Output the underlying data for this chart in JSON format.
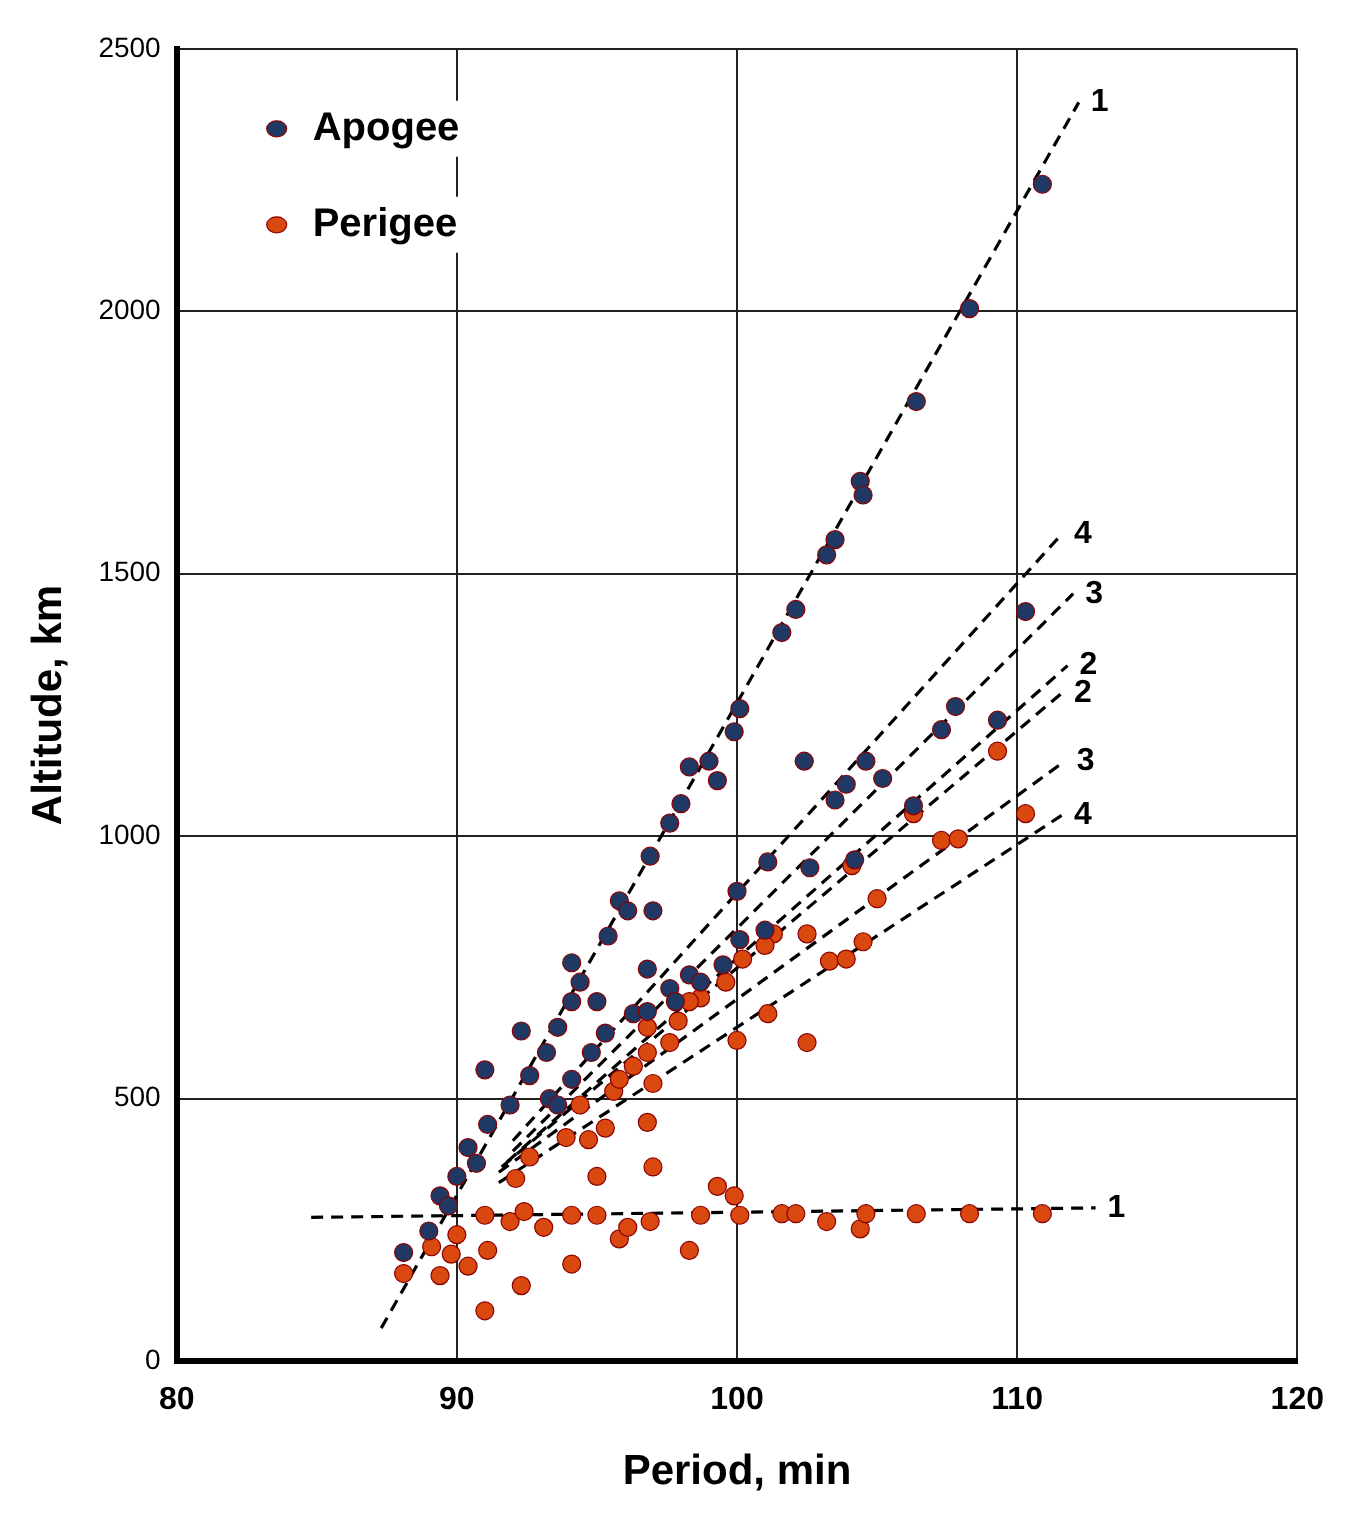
{
  "chart_data": {
    "type": "scatter",
    "xlabel": "Period, min",
    "ylabel": "Altitude, km",
    "xlim": [
      80,
      120
    ],
    "xticks": [
      80,
      90,
      100,
      110,
      120
    ],
    "ylim": [
      0,
      2500
    ],
    "yticks": [
      0,
      500,
      1000,
      1500,
      2000,
      2500
    ],
    "grid": true,
    "legend": "top left",
    "series": [
      {
        "name": "Apogee",
        "color": "#1f3864",
        "marker": "circle",
        "x": [
          88.1,
          89.0,
          89.4,
          89.7,
          90.0,
          90.4,
          90.7,
          91.1,
          91.9,
          91.0,
          92.3,
          92.6,
          93.2,
          93.6,
          94.1,
          94.4,
          95.0,
          94.1,
          95.4,
          95.8,
          96.1,
          97.0,
          96.8,
          96.9,
          97.6,
          98.0,
          98.3,
          99.0,
          99.3,
          99.9,
          94.8,
          95.3,
          96.3,
          96.8,
          97.6,
          97.8,
          98.3,
          98.7,
          99.5,
          100.1,
          101.0,
          101.1,
          100.0,
          102.6,
          102.4,
          93.3,
          93.6,
          94.1,
          110.9,
          108.3,
          106.4,
          104.4,
          104.5,
          103.5,
          103.2,
          102.1,
          101.6,
          100.1,
          110.3,
          107.8,
          109.3,
          107.3,
          104.6,
          105.2,
          103.9,
          103.5,
          106.3,
          104.2
        ],
        "values": [
          207,
          248,
          315,
          296,
          352,
          407,
          377,
          451,
          488,
          555,
          629,
          544,
          588,
          636,
          685,
          722,
          685,
          759,
          810,
          877,
          858,
          858,
          747,
          962,
          1025,
          1062,
          1132,
          1143,
          1106,
          1199,
          588,
          625,
          662,
          666,
          710,
          685,
          736,
          722,
          755,
          803,
          821,
          951,
          895,
          940,
          1143,
          500,
          488,
          537,
          2242,
          2005,
          1828,
          1676,
          1650,
          1565,
          1536,
          1432,
          1388,
          1243,
          1428,
          1247,
          1221,
          1203,
          1143,
          1110,
          1099,
          1069,
          1058,
          955
        ]
      },
      {
        "name": "Perigee",
        "color": "#d9480f",
        "marker": "circle",
        "x": [
          88.1,
          89.4,
          89.1,
          89.8,
          90.4,
          90.0,
          91.0,
          91.1,
          91.0,
          92.3,
          91.9,
          92.4,
          93.1,
          94.1,
          94.1,
          95.0,
          95.8,
          96.1,
          96.9,
          98.3,
          98.7,
          99.3,
          99.9,
          100.1,
          97.0,
          95.0,
          92.1,
          92.6,
          93.9,
          94.7,
          95.3,
          96.8,
          94.4,
          95.6,
          95.8,
          97.0,
          96.3,
          96.8,
          97.6,
          97.9,
          98.7,
          99.6,
          100.2,
          101.3,
          100.0,
          101.1,
          102.5,
          103.3,
          96.8,
          98.3,
          105.0,
          104.5,
          103.9,
          102.5,
          101.0,
          101.6,
          102.1,
          103.2,
          104.4,
          104.6,
          106.4,
          108.3,
          110.9,
          109.3,
          110.3,
          107.3,
          107.9,
          106.3,
          104.1
        ],
        "values": [
          167,
          163,
          218,
          204,
          181,
          241,
          278,
          211,
          96,
          144,
          266,
          285,
          255,
          185,
          278,
          278,
          233,
          255,
          266,
          211,
          278,
          333,
          315,
          278,
          370,
          352,
          348,
          389,
          426,
          422,
          444,
          455,
          488,
          514,
          537,
          529,
          562,
          588,
          607,
          648,
          692,
          722,
          766,
          814,
          611,
          662,
          607,
          762,
          636,
          685,
          881,
          799,
          766,
          814,
          792,
          281,
          281,
          266,
          252,
          281,
          281,
          281,
          281,
          1162,
          1043,
          992,
          995,
          1043,
          944
        ]
      },
      {
        "type": "line",
        "name": "1",
        "color": "#000000",
        "line_style": "dashed",
        "x": [
          87.3,
          112.2
        ],
        "values": [
          63,
          2398
        ]
      },
      {
        "type": "line",
        "name": "4",
        "color": "#000000",
        "line_style": "dashed",
        "x": [
          92.0,
          111.6
        ],
        "values": [
          420,
          1576
        ]
      },
      {
        "type": "line",
        "name": "3",
        "color": "#000000",
        "line_style": "dashed",
        "x": [
          92.0,
          112.0
        ],
        "values": [
          400,
          1462
        ]
      },
      {
        "type": "line",
        "name": "2",
        "color": "#000000",
        "line_style": "dashed",
        "x": [
          91.8,
          111.8
        ],
        "values": [
          380,
          1325
        ]
      },
      {
        "type": "line",
        "name": "2",
        "color": "#000000",
        "line_style": "dashed",
        "x": [
          91.6,
          111.6
        ],
        "values": [
          370,
          1273
        ]
      },
      {
        "type": "line",
        "name": "3",
        "color": "#000000",
        "line_style": "dashed",
        "x": [
          91.5,
          111.7
        ],
        "values": [
          360,
          1143
        ]
      },
      {
        "type": "line",
        "name": "4",
        "color": "#000000",
        "line_style": "dashed",
        "x": [
          91.5,
          111.6
        ],
        "values": [
          340,
          1040
        ]
      },
      {
        "type": "line",
        "name": "1",
        "color": "#000000",
        "line_style": "dashed",
        "x": [
          84.8,
          112.8
        ],
        "values": [
          274,
          292
        ]
      }
    ]
  }
}
